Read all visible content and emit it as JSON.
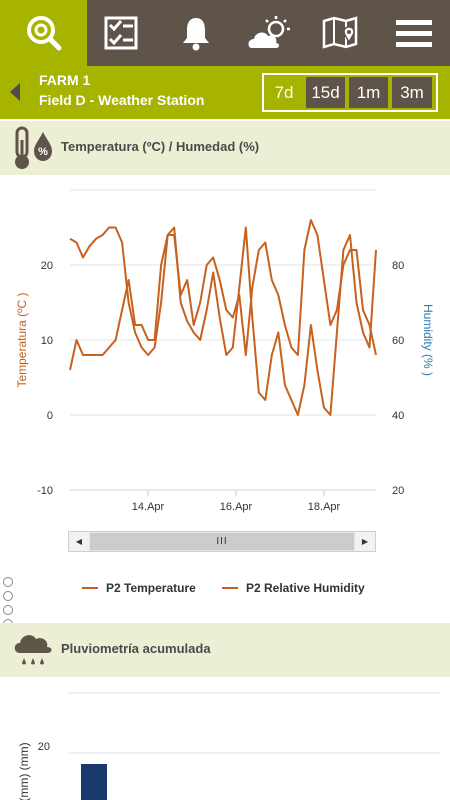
{
  "nav": {
    "items": [
      {
        "icon": "search-icon"
      },
      {
        "icon": "checklist-icon"
      },
      {
        "icon": "bell-icon"
      },
      {
        "icon": "weather-icon"
      },
      {
        "icon": "map-icon"
      },
      {
        "icon": "menu-icon"
      }
    ]
  },
  "header": {
    "farm": "FARM 1",
    "field": "Field D - Weather Station",
    "ranges": [
      "7d",
      "15d",
      "1m",
      "3m"
    ],
    "selected_range": "7d"
  },
  "section1": {
    "title": "Temperatura (ºC) / Humedad (%)",
    "icon": "thermometer-humidity-icon"
  },
  "chart_data": {
    "type": "line",
    "y_left_label": "Temperatura (ºC )",
    "y_right_label": "Humidity (% )",
    "y_left_ticks": [
      "20",
      "10",
      "0",
      "-10"
    ],
    "y_right_ticks": [
      "80",
      "60",
      "40",
      "20"
    ],
    "y_left_range": [
      -10,
      30
    ],
    "y_right_range": [
      20,
      100
    ],
    "x_ticks": [
      "14.Apr",
      "16.Apr",
      "18.Apr"
    ],
    "series": [
      {
        "name": "P2 Temperature",
        "axis": "left",
        "color": "#c8601e",
        "values": [
          6,
          10,
          8,
          8,
          8,
          8,
          9,
          10,
          14,
          18,
          12,
          12,
          10,
          10,
          20,
          24,
          24,
          16,
          18,
          12,
          15,
          20,
          21,
          18,
          14,
          13,
          16,
          8,
          17,
          22,
          23,
          18,
          16,
          12,
          9,
          8,
          22,
          26,
          24,
          18,
          12,
          14,
          20,
          22,
          22,
          14,
          12,
          8
        ]
      },
      {
        "name": "P2 Relative Humidity",
        "axis": "right",
        "color": "#c8601e",
        "values": [
          87,
          86,
          82,
          85,
          87,
          88,
          90,
          90,
          86,
          70,
          62,
          58,
          56,
          58,
          70,
          88,
          90,
          70,
          65,
          62,
          60,
          68,
          78,
          66,
          56,
          58,
          74,
          90,
          66,
          46,
          44,
          56,
          62,
          48,
          44,
          40,
          48,
          64,
          52,
          42,
          40,
          62,
          84,
          88,
          70,
          62,
          58,
          84
        ]
      }
    ]
  },
  "scrollbar": {
    "left_arrow": "◀",
    "right_arrow": "▶",
    "thumb": "III"
  },
  "section2": {
    "title": "Pluviometría acumulada",
    "icon": "rain-cloud-icon",
    "y_label": "(mm) (mm)",
    "y_tick": "20",
    "bar_color": "#1a3a6e"
  }
}
